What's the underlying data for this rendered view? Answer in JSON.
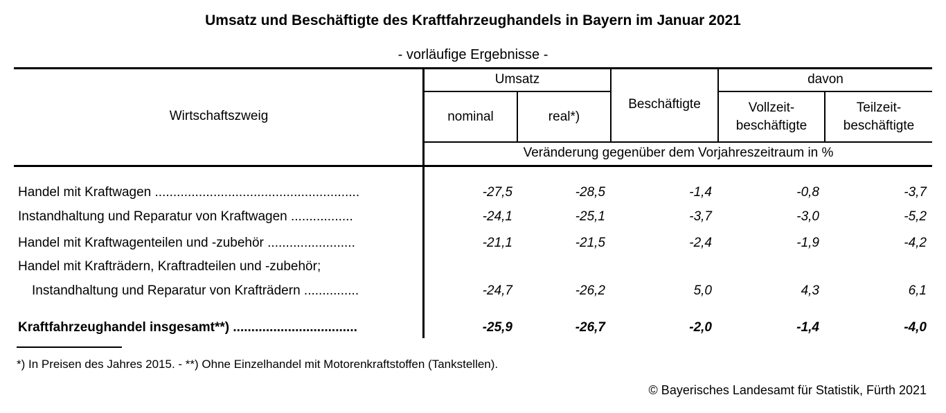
{
  "title": "Umsatz und Beschäftigte des Kraftfahrzeughandels in Bayern im Januar 2021",
  "subtitle": "- vorläufige Ergebnisse -",
  "header": {
    "wirtschaftszweig": "Wirtschaftszweig",
    "umsatz": "Umsatz",
    "nominal": "nominal",
    "real": "real*)",
    "beschaeftigte": "Beschäftigte",
    "davon": "davon",
    "vollzeit_1": "Vollzeit-",
    "vollzeit_2": "beschäftigte",
    "teilzeit_1": "Teilzeit-",
    "teilzeit_2": "beschäftigte",
    "veraenderung": "Veränderung gegenüber dem Vorjahreszeitraum in %"
  },
  "rows": [
    {
      "label": "Handel mit Kraftwagen ........................................................",
      "nominal": "-27,5",
      "real": "-28,5",
      "beschaeftigte": "-1,4",
      "vollzeit": "-0,8",
      "teilzeit": "-3,7"
    },
    {
      "label": "Instandhaltung und Reparatur von Kraftwagen .................",
      "nominal": "-24,1",
      "real": "-25,1",
      "beschaeftigte": "-3,7",
      "vollzeit": "-3,0",
      "teilzeit": "-5,2"
    },
    {
      "label": "Handel mit Kraftwagenteilen und -zubehör ........................",
      "nominal": "-21,1",
      "real": "-21,5",
      "beschaeftigte": "-2,4",
      "vollzeit": "-1,9",
      "teilzeit": "-4,2"
    },
    {
      "label_line1": "Handel mit Krafträdern, Kraftradteilen und -zubehör;",
      "label": "Instandhaltung und Reparatur von Krafträdern ...............",
      "nominal": "-24,7",
      "real": "-26,2",
      "beschaeftigte": "5,0",
      "vollzeit": "4,3",
      "teilzeit": "6,1"
    },
    {
      "label": "Kraftfahrzeughandel insgesamt**) ..................................",
      "nominal": "-25,9",
      "real": "-26,7",
      "beschaeftigte": "-2,0",
      "vollzeit": "-1,4",
      "teilzeit": "-4,0"
    }
  ],
  "footnote": "*) In Preisen des Jahres 2015. - **) Ohne Einzelhandel mit Motorenkraftstoffen (Tankstellen).",
  "copyright": "© Bayerisches Landesamt für Statistik, Fürth 2021"
}
